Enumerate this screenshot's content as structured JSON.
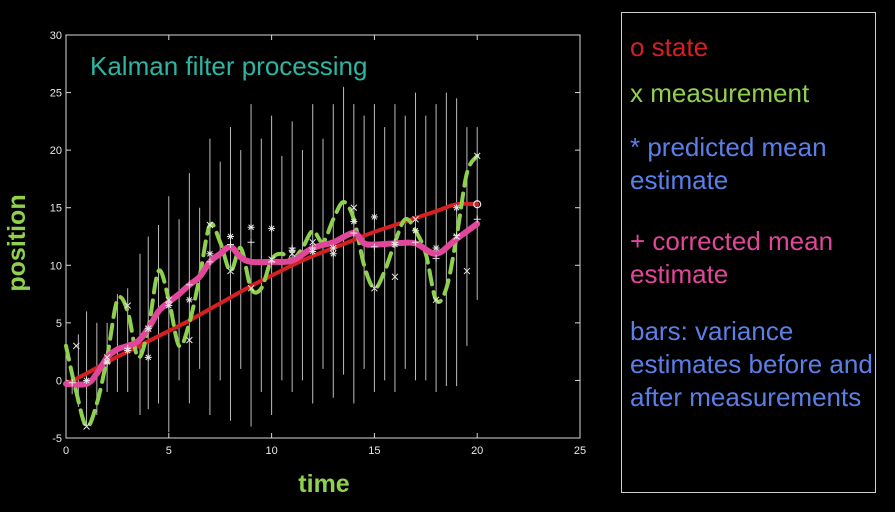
{
  "chart_data": {
    "type": "line",
    "title": "Kalman filter processing",
    "xlabel": "time",
    "ylabel": "position",
    "xlim": [
      0,
      25
    ],
    "ylim": [
      -5,
      30
    ],
    "xticks": [
      0,
      5,
      10,
      15,
      20,
      25
    ],
    "yticks": [
      -5,
      0,
      5,
      10,
      15,
      20,
      25,
      30
    ],
    "legend_position": "right",
    "legend": [
      {
        "text": "o state",
        "color": "#d42020"
      },
      {
        "text": "x measurement",
        "color": "#8fd14f"
      },
      {
        "text": "*  predicted mean estimate",
        "color": "#5b7fe6"
      },
      {
        "text": "+ corrected mean estimate",
        "color": "#e0479a"
      },
      {
        "text": "bars:  variance estimates before and after measurements",
        "color": "#5b7fe6"
      }
    ],
    "series": [
      {
        "name": "state",
        "color": "#d42020",
        "style": "solid",
        "x": [
          0,
          1,
          2,
          3,
          4,
          5,
          6,
          7,
          8,
          9,
          10,
          11,
          12,
          13,
          14,
          15,
          16,
          17,
          18,
          19,
          20
        ],
        "y": [
          -0.3,
          0.6,
          1.6,
          2.5,
          3.4,
          4.3,
          5.2,
          6.2,
          7.2,
          8.2,
          9.1,
          10.0,
          10.8,
          11.5,
          12.2,
          12.9,
          13.5,
          14.1,
          14.7,
          15.3,
          15.3
        ]
      },
      {
        "name": "measurement",
        "color": "#8fd14f",
        "style": "dashed",
        "x": [
          0,
          0.5,
          1,
          1.5,
          2,
          2.5,
          3,
          3.5,
          4,
          4.5,
          5,
          5.5,
          6,
          6.5,
          7,
          7.5,
          8,
          8.5,
          9,
          9.5,
          10,
          10.5,
          11,
          11.5,
          12,
          12.5,
          13,
          13.5,
          14,
          14.5,
          15,
          15.5,
          16,
          16.5,
          17,
          17.5,
          18,
          18.5,
          19,
          19.5,
          20
        ],
        "y": [
          3,
          -1,
          -4,
          -2,
          2,
          7,
          6,
          2,
          4.5,
          9.5,
          7,
          3,
          5,
          9,
          13.5,
          12,
          9.5,
          11.5,
          8,
          8,
          10.5,
          11,
          10.5,
          11.5,
          13,
          12,
          14,
          15.5,
          14,
          10,
          8,
          9.5,
          12,
          14,
          13,
          11,
          7,
          8,
          12.5,
          18,
          19.5
        ]
      },
      {
        "name": "corrected mean estimate",
        "color": "#e0479a",
        "style": "solid",
        "x": [
          0,
          1,
          1.5,
          2,
          2.5,
          3,
          3.5,
          4,
          4.5,
          5,
          5.5,
          6,
          6.5,
          7,
          7.5,
          8,
          8.5,
          9,
          10,
          11,
          12,
          13,
          14,
          14.5,
          15,
          16,
          17,
          18,
          19,
          20
        ],
        "y": [
          -0.3,
          -0.3,
          0.6,
          2,
          2.7,
          3,
          3.4,
          4.5,
          6,
          6.8,
          7.5,
          8.3,
          9,
          10.3,
          11,
          11.6,
          10.7,
          10.3,
          10.3,
          10.4,
          11.5,
          12,
          12.8,
          11.9,
          11.8,
          11.9,
          11.9,
          11,
          12.3,
          13.6
        ]
      }
    ],
    "measurement_markers": {
      "x": [
        0.5,
        1,
        2,
        3,
        4,
        5,
        6,
        7,
        8,
        9,
        10,
        11,
        12,
        13,
        14,
        15,
        16,
        17,
        18,
        19,
        19.5,
        20
      ],
      "y": [
        3,
        -4,
        2,
        6.5,
        4.5,
        7,
        3.5,
        13.5,
        9.5,
        8,
        10.5,
        11,
        12,
        11.5,
        15,
        8,
        9,
        14,
        7,
        12.5,
        9.5,
        19.5
      ]
    },
    "predicted_markers": {
      "x": [
        1,
        2,
        3,
        4,
        5,
        6,
        7,
        8,
        9,
        10,
        11,
        12,
        13,
        14,
        15,
        16,
        17,
        18,
        19
      ],
      "y": [
        0,
        1.6,
        2.6,
        2,
        6.5,
        7,
        11,
        12.5,
        13.3,
        13.2,
        11.3,
        11.2,
        11,
        13.8,
        14.2,
        11.8,
        13,
        11.5,
        15
      ]
    },
    "corrected_markers": {
      "x": [
        0.3,
        2,
        3,
        4,
        5,
        6,
        7,
        8,
        9,
        10,
        11,
        12,
        13,
        14,
        15,
        16,
        17,
        18,
        19,
        20
      ],
      "y": [
        -0.2,
        1.5,
        2.8,
        4.5,
        6.8,
        8.3,
        10.3,
        11.8,
        12,
        10.3,
        11.5,
        11.5,
        11.5,
        12.8,
        11.6,
        12,
        12,
        10.6,
        12.6,
        14
      ]
    },
    "state_markers": {
      "x": [
        20
      ],
      "y": [
        15.3
      ]
    },
    "variance_bars": [
      {
        "x": 0.3,
        "lo": -1.2,
        "hi": 1.0
      },
      {
        "x": 0.6,
        "lo": -2.3,
        "hi": 4.0
      },
      {
        "x": 1.0,
        "lo": -4.0,
        "hi": 6.0
      },
      {
        "x": 1.5,
        "lo": -3.0,
        "hi": 5.0
      },
      {
        "x": 2.0,
        "lo": -1.0,
        "hi": 5.0
      },
      {
        "x": 2.5,
        "lo": -1.0,
        "hi": 7.5
      },
      {
        "x": 3.0,
        "lo": -1.0,
        "hi": 8.0
      },
      {
        "x": 3.6,
        "lo": -3.0,
        "hi": 11.0
      },
      {
        "x": 4.0,
        "lo": -2.5,
        "hi": 12.5
      },
      {
        "x": 4.5,
        "lo": -2.0,
        "hi": 13.5
      },
      {
        "x": 5.0,
        "lo": -4.5,
        "hi": 16.0
      },
      {
        "x": 5.5,
        "lo": 0.0,
        "hi": 14.0
      },
      {
        "x": 6.0,
        "lo": -2.0,
        "hi": 18.0
      },
      {
        "x": 6.5,
        "lo": 1.0,
        "hi": 15.0
      },
      {
        "x": 7.0,
        "lo": -3.0,
        "hi": 21.0
      },
      {
        "x": 7.5,
        "lo": 0.0,
        "hi": 19.0
      },
      {
        "x": 8.0,
        "lo": -3.5,
        "hi": 22.0
      },
      {
        "x": 8.5,
        "lo": 1.0,
        "hi": 20.0
      },
      {
        "x": 9.0,
        "lo": -4.0,
        "hi": 24.0
      },
      {
        "x": 9.5,
        "lo": -1.0,
        "hi": 21.0
      },
      {
        "x": 10.0,
        "lo": -3.0,
        "hi": 23.0
      },
      {
        "x": 10.5,
        "lo": 0.0,
        "hi": 19.5
      },
      {
        "x": 11.0,
        "lo": -1.0,
        "hi": 22.5
      },
      {
        "x": 11.5,
        "lo": 0.0,
        "hi": 20.0
      },
      {
        "x": 12.0,
        "lo": -2.0,
        "hi": 24.0
      },
      {
        "x": 12.5,
        "lo": 1.0,
        "hi": 21.0
      },
      {
        "x": 13.0,
        "lo": -1.5,
        "hi": 24.0
      },
      {
        "x": 13.5,
        "lo": 0.5,
        "hi": 25.5
      },
      {
        "x": 14.0,
        "lo": -2.0,
        "hi": 24.0
      },
      {
        "x": 14.5,
        "lo": 1.0,
        "hi": 23.0
      },
      {
        "x": 15.0,
        "lo": -1.0,
        "hi": 24.0
      },
      {
        "x": 15.5,
        "lo": 0.0,
        "hi": 22.0
      },
      {
        "x": 16.0,
        "lo": -1.0,
        "hi": 24.0
      },
      {
        "x": 16.5,
        "lo": 1.0,
        "hi": 23.0
      },
      {
        "x": 17.0,
        "lo": 0.0,
        "hi": 25.0
      },
      {
        "x": 17.5,
        "lo": 0.0,
        "hi": 23.0
      },
      {
        "x": 18.0,
        "lo": -1.0,
        "hi": 24.0
      },
      {
        "x": 18.5,
        "lo": -0.5,
        "hi": 25.0
      },
      {
        "x": 19.0,
        "lo": -0.5,
        "hi": 24.5
      },
      {
        "x": 19.5,
        "lo": 3.0,
        "hi": 22.0
      },
      {
        "x": 20.0,
        "lo": 7.0,
        "hi": 22.0
      }
    ]
  }
}
